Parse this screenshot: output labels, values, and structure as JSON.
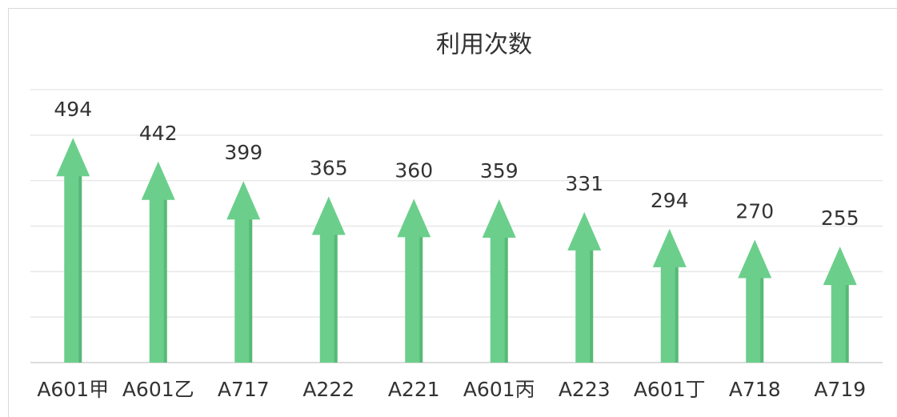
{
  "chart_data": {
    "type": "arrow-bar",
    "title": "利用次数",
    "categories": [
      "A601甲",
      "A601乙",
      "A717",
      "A222",
      "A221",
      "A601丙",
      "A223",
      "A601丁",
      "A718",
      "A719"
    ],
    "values": [
      494,
      442,
      399,
      365,
      360,
      359,
      331,
      294,
      270,
      255
    ],
    "color": "#6bcf8b",
    "ylim": [
      0,
      600
    ],
    "yticks": [
      0,
      100,
      200,
      300,
      400,
      500,
      600
    ],
    "grid": true
  }
}
